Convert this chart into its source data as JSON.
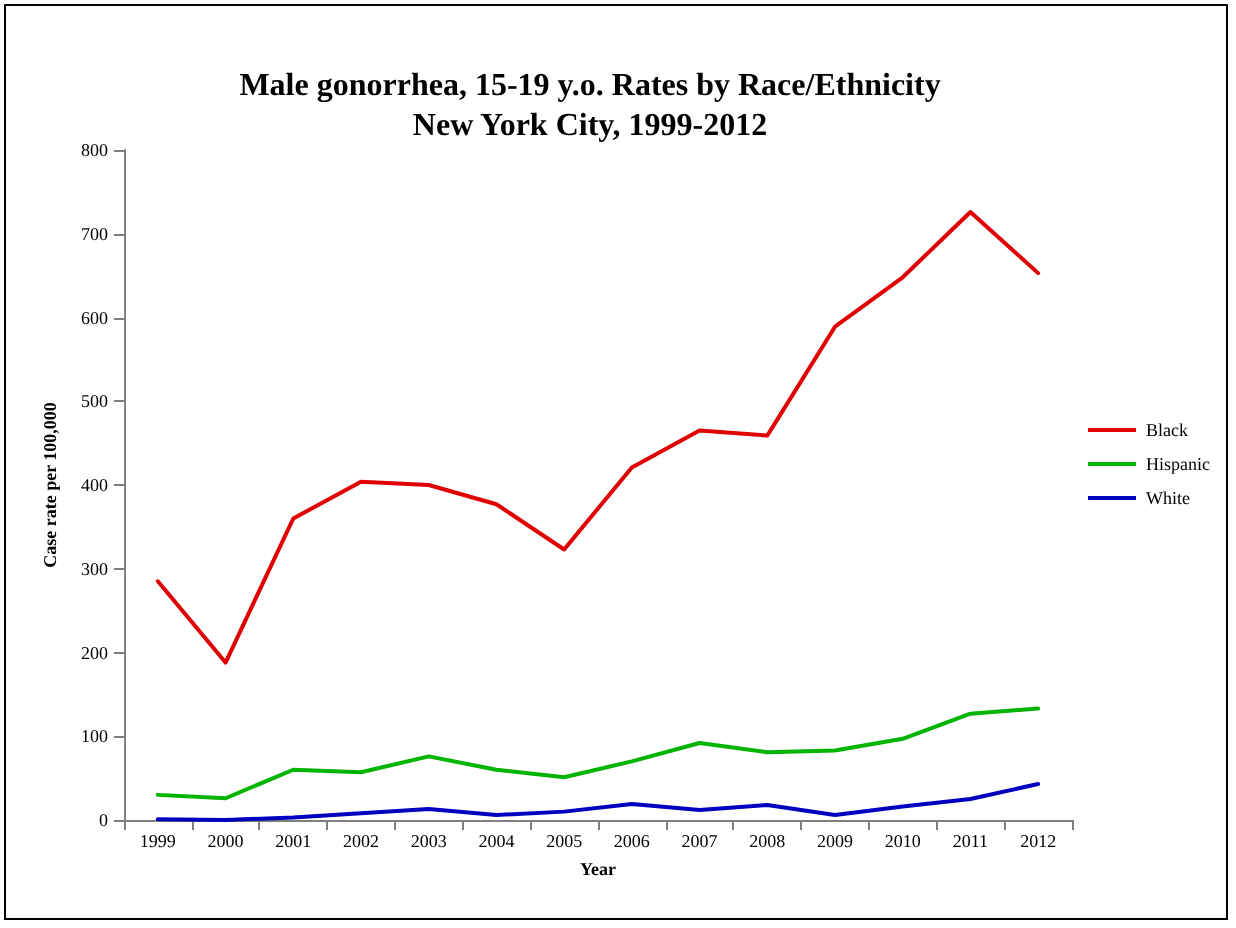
{
  "chart_data": {
    "type": "line",
    "title": "Male gonorrhea, 15-19 y.o. Rates by Race/Ethnicity\nNew York City, 1999-2012",
    "xlabel": "Year",
    "ylabel": "Case rate per 100,000",
    "categories": [
      "1999",
      "2000",
      "2001",
      "2002",
      "2003",
      "2004",
      "2005",
      "2006",
      "2007",
      "2008",
      "2009",
      "2010",
      "2011",
      "2012"
    ],
    "series": [
      {
        "name": "Black",
        "color": "#e00000",
        "values": [
          285,
          188,
          360,
          404,
          400,
          377,
          323,
          421,
          465,
          459,
          589,
          648,
          726,
          653
        ]
      },
      {
        "name": "Hispanic",
        "color": "#00b400",
        "values": [
          30,
          26,
          60,
          57,
          76,
          60,
          51,
          70,
          92,
          81,
          83,
          97,
          127,
          133
        ]
      },
      {
        "name": "White",
        "color": "#0000c0",
        "values": [
          1,
          0,
          3,
          8,
          13,
          6,
          10,
          19,
          12,
          18,
          6,
          16,
          25,
          43
        ]
      }
    ],
    "ylim": [
      0,
      800
    ],
    "yticks": [
      0,
      100,
      200,
      300,
      400,
      500,
      600,
      700,
      800
    ],
    "grid": false,
    "legend": "right",
    "marker": "none",
    "line_style": "solid"
  }
}
